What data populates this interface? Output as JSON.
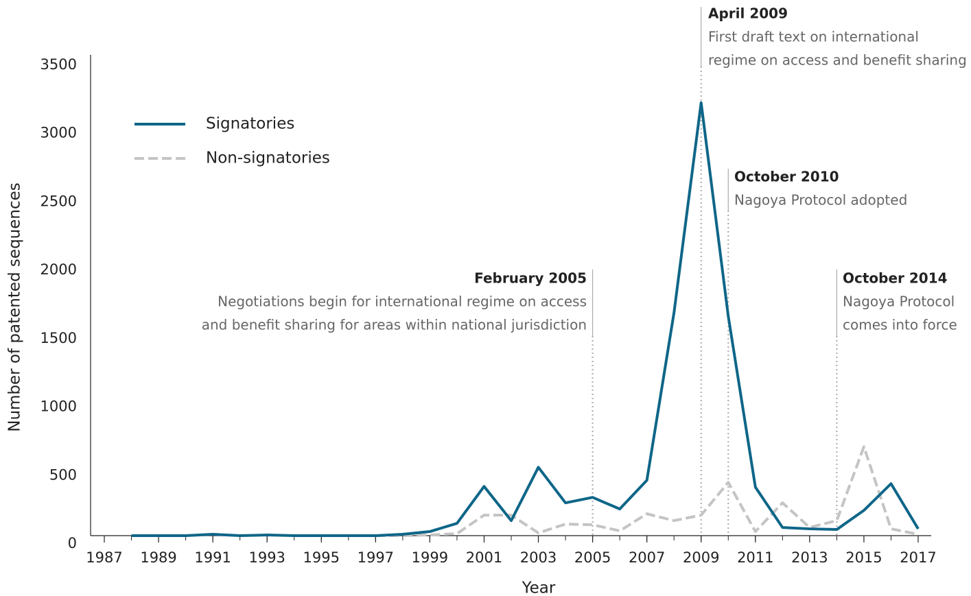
{
  "chart_data": {
    "type": "line",
    "x_label": "Year",
    "y_label": "Number of patented sequences",
    "xlim": [
      1987,
      2017
    ],
    "xticks": [
      1987,
      1989,
      1991,
      1993,
      1995,
      1997,
      1999,
      2001,
      2003,
      2005,
      2007,
      2009,
      2011,
      2013,
      2015,
      2017
    ],
    "ylim": [
      0,
      3500
    ],
    "yticks": [
      0,
      500,
      1000,
      1500,
      2000,
      2500,
      3000,
      3500
    ],
    "x": [
      1988,
      1989,
      1990,
      1991,
      1992,
      1993,
      1994,
      1995,
      1996,
      1997,
      1998,
      1999,
      2000,
      2001,
      2002,
      2003,
      2004,
      2005,
      2006,
      2007,
      2008,
      2009,
      2010,
      2011,
      2012,
      2013,
      2014,
      2015,
      2016,
      2017
    ],
    "series": [
      {
        "name": "Signatories",
        "color": "#0e6688",
        "dashed": false,
        "values": [
          60,
          60,
          60,
          70,
          60,
          65,
          60,
          60,
          60,
          60,
          70,
          90,
          150,
          420,
          170,
          560,
          300,
          340,
          255,
          465,
          1690,
          3225,
          1665,
          415,
          120,
          110,
          105,
          245,
          440,
          110
        ]
      },
      {
        "name": "Non-signatories",
        "color": "#c4c4c4",
        "dashed": true,
        "values": [
          null,
          null,
          null,
          null,
          null,
          null,
          null,
          null,
          null,
          60,
          60,
          65,
          75,
          210,
          210,
          80,
          145,
          140,
          95,
          220,
          170,
          210,
          450,
          90,
          300,
          120,
          170,
          710,
          110,
          70
        ]
      }
    ],
    "annotations": [
      {
        "x": 2005,
        "date": "February 2005",
        "text": [
          "Negotiations begin for international regime on access",
          "and benefit sharing for areas within national jurisdiction"
        ]
      },
      {
        "x": 2009,
        "date": "April 2009",
        "text": [
          "First draft text on international",
          "regime on access and benefit sharing"
        ]
      },
      {
        "x": 2010,
        "date": "October 2010",
        "text": [
          "Nagoya Protocol adopted"
        ]
      },
      {
        "x": 2014,
        "date": "October 2014",
        "text": [
          "Nagoya Protocol",
          "comes into force"
        ]
      }
    ]
  }
}
